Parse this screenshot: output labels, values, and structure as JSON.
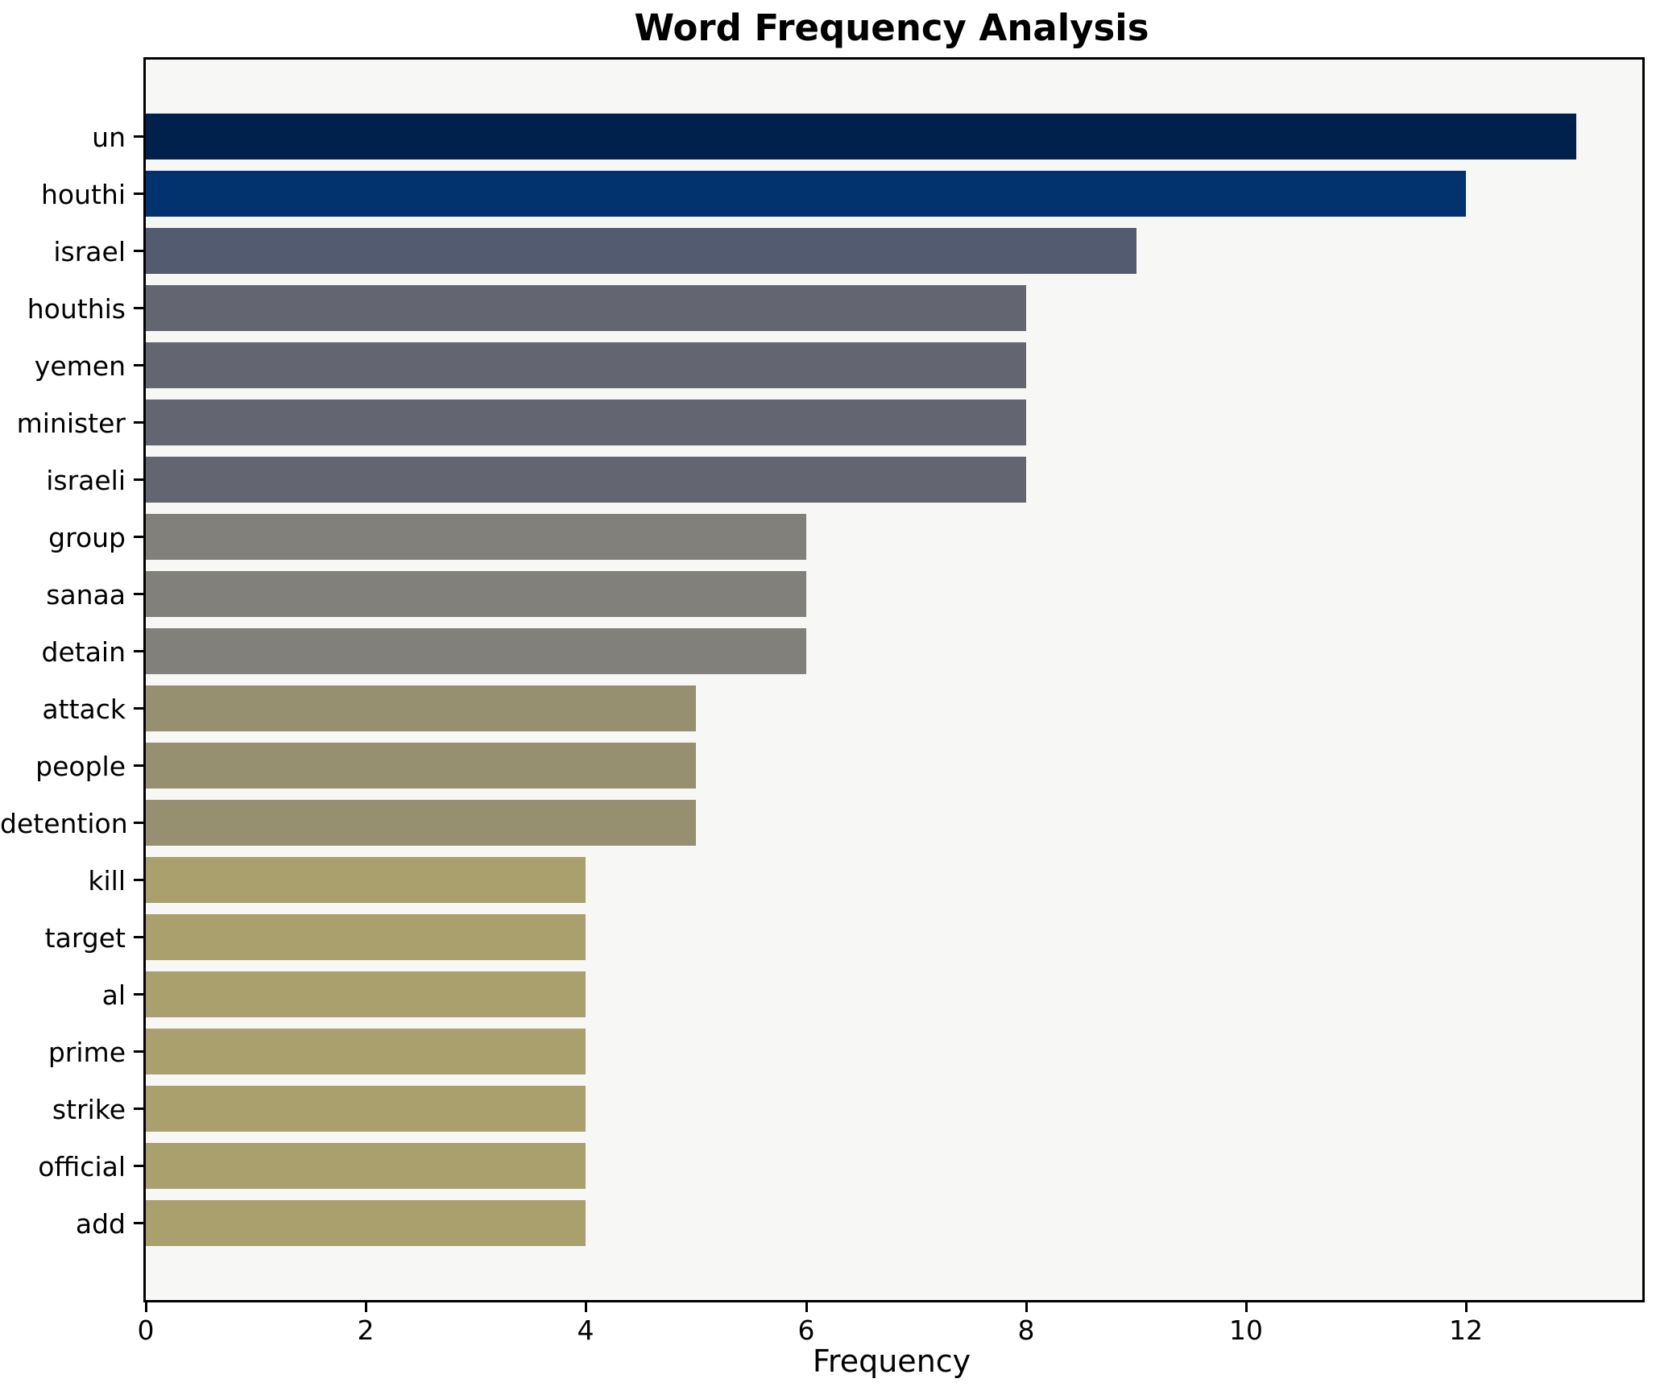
{
  "title": "Word Frequency Analysis",
  "chart_data": {
    "type": "bar",
    "orientation": "horizontal",
    "title": "Word Frequency Analysis",
    "xlabel": "Frequency",
    "ylabel": "",
    "categories": [
      "un",
      "houthi",
      "israel",
      "houthis",
      "yemen",
      "minister",
      "israeli",
      "group",
      "sanaa",
      "detain",
      "attack",
      "people",
      "detention",
      "kill",
      "target",
      "al",
      "prime",
      "strike",
      "official",
      "add"
    ],
    "values": [
      13,
      12,
      9,
      8,
      8,
      8,
      8,
      6,
      6,
      6,
      5,
      5,
      5,
      4,
      4,
      4,
      4,
      4,
      4,
      4
    ],
    "bar_colors": [
      "#01214d",
      "#03336f",
      "#535b70",
      "#636571",
      "#636571",
      "#636571",
      "#636571",
      "#82807a",
      "#82807a",
      "#82807a",
      "#969070",
      "#969070",
      "#969070",
      "#a9a06e",
      "#a9a06e",
      "#a9a06e",
      "#a9a06e",
      "#a9a06e",
      "#a9a06e",
      "#a9a06e"
    ],
    "xticks": [
      0,
      2,
      4,
      6,
      8,
      10,
      12
    ],
    "xlim": [
      0,
      13.6
    ],
    "grid": false,
    "legend": null,
    "plot_background": "#f7f7f6",
    "figure_background": "#ffffff"
  }
}
